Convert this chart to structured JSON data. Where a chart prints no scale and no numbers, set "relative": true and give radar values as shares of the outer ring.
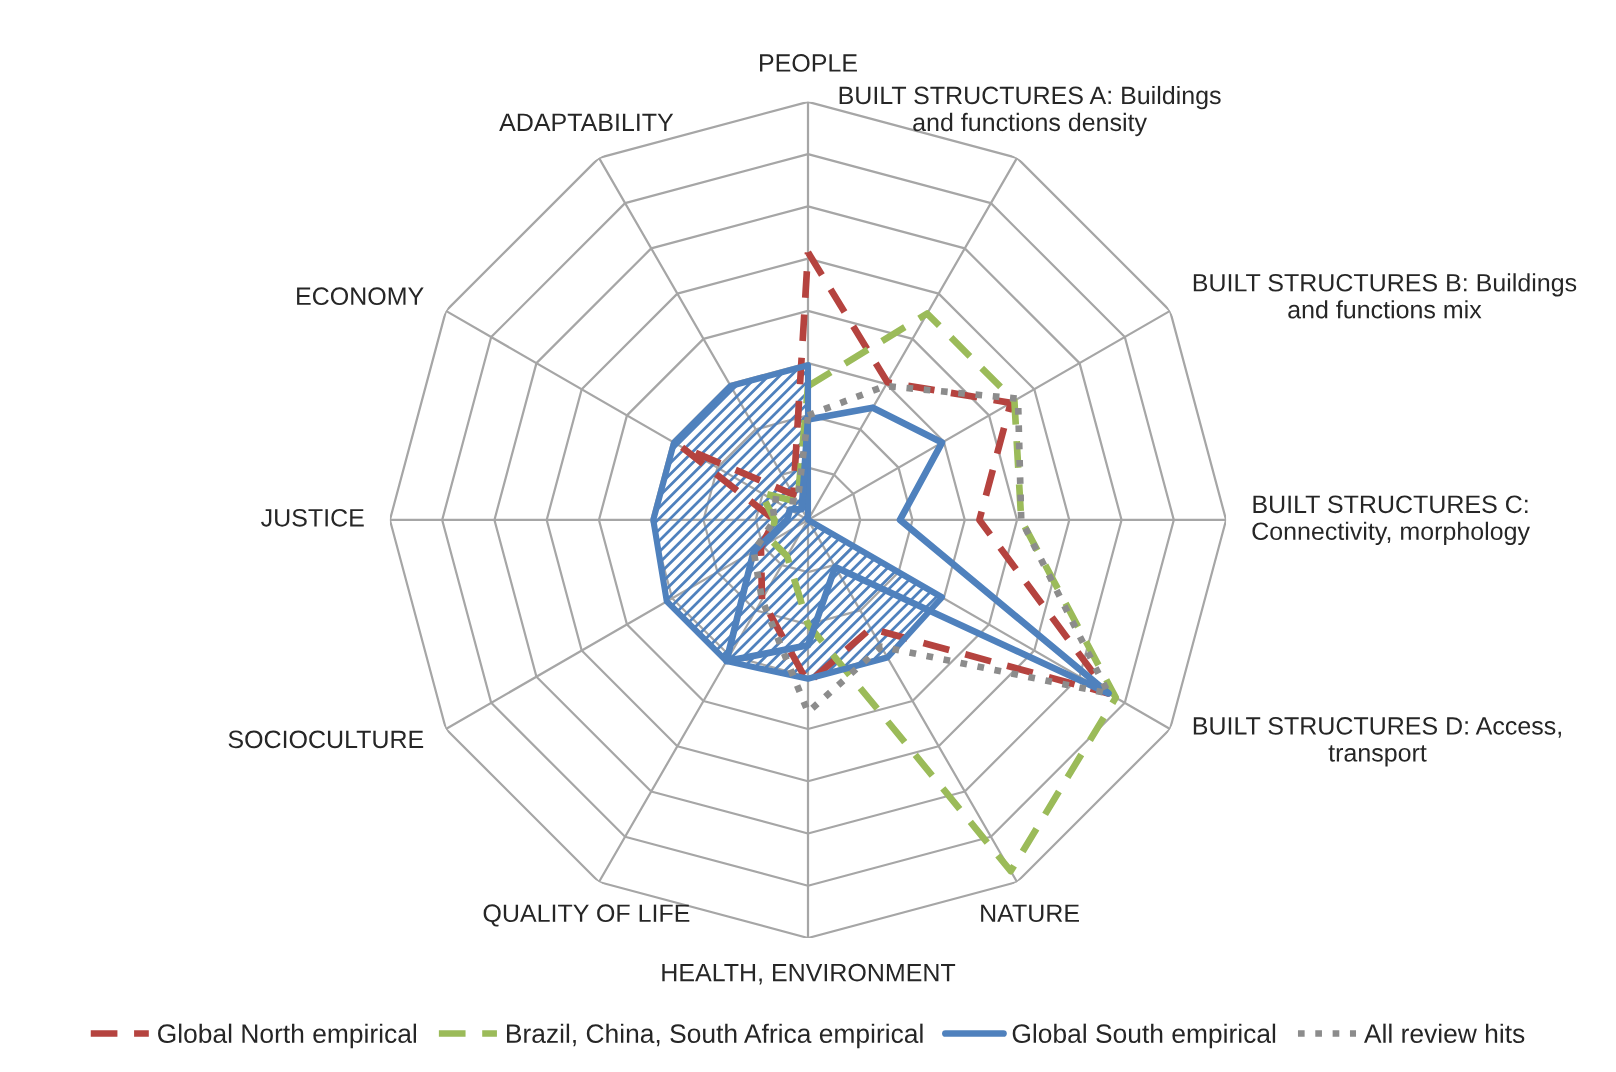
{
  "chart_data": {
    "type": "radar",
    "relative": true,
    "grid": true,
    "legend": "bottom",
    "categories": [
      "PEOPLE",
      "BUILT STRUCTURES A: Buildings\nand functions density",
      "BUILT STRUCTURES B: Buildings\nand functions mix",
      "BUILT STRUCTURES C:\nConnectivity, morphology",
      "BUILT STRUCTURES D: Access,\ntransport",
      "NATURE",
      "HEALTH, ENVIRONMENT",
      "QUALITY OF LIFE",
      "SOCIOCULTURE",
      "JUSTICE",
      "ECONOMY",
      "ADAPTABILITY"
    ],
    "series": [
      {
        "name": "Global North empirical",
        "color": "#b5433f",
        "line_style": "dashed",
        "values": [
          0.64,
          0.38,
          0.56,
          0.41,
          0.83,
          0.3,
          0.39,
          0.22,
          0.13,
          0.08,
          0.35,
          0.07
        ]
      },
      {
        "name": "Brazil, China, South Africa empirical",
        "color": "#9bbb59",
        "line_style": "dashed",
        "values": [
          0.32,
          0.57,
          0.57,
          0.51,
          0.85,
          0.97,
          0.25,
          0.1,
          0.1,
          0.08,
          0.13,
          0.05
        ]
      },
      {
        "type": "area",
        "color": "#4f81bd",
        "line_style": "solid",
        "values": [
          0.37,
          0.0,
          0.0,
          0.0,
          0.37,
          0.38,
          0.38,
          0.39,
          0.39,
          0.37,
          0.37,
          0.37
        ]
      },
      {
        "name": "Global South empirical",
        "color": "#4f81bd",
        "line_style": "solid",
        "values": [
          0.24,
          0.31,
          0.37,
          0.22,
          0.83,
          0.13,
          0.3,
          0.39,
          0.15,
          0.05,
          0.05,
          0.03
        ]
      },
      {
        "name": "All review hits",
        "color": "#8c8c8c",
        "line_style": "dotted",
        "values": [
          0.25,
          0.37,
          0.58,
          0.51,
          0.83,
          0.35,
          0.46,
          0.22,
          0.15,
          0.08,
          0.1,
          0.05
        ]
      }
    ]
  }
}
